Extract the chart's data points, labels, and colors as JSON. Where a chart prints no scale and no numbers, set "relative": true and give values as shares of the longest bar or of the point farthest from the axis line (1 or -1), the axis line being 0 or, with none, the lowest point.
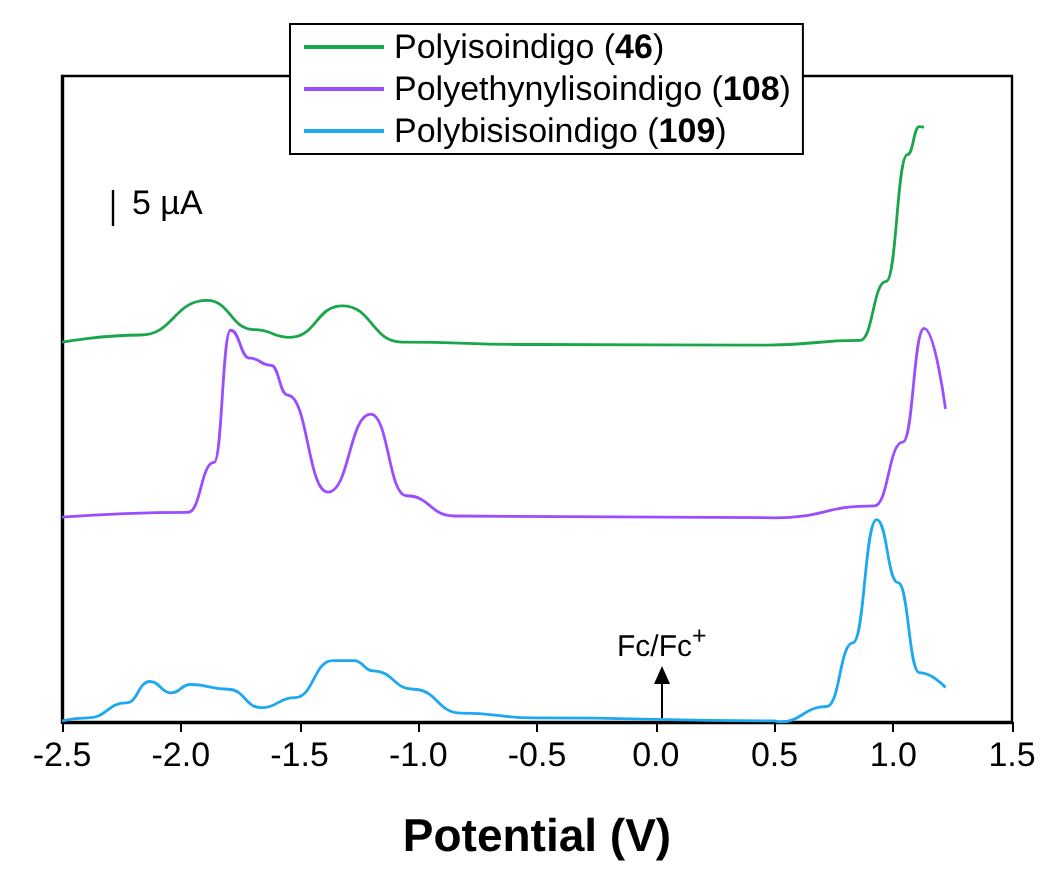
{
  "chart_data": {
    "type": "line",
    "relative": true,
    "xlabel": "Potential (V)",
    "xlim": [
      -2.5,
      1.5
    ],
    "xticks": [
      {
        "value": -2.5,
        "label": "-2.5"
      },
      {
        "value": -2,
        "label": "-2.0"
      },
      {
        "value": -1.5,
        "label": "-1.5"
      },
      {
        "value": -1,
        "label": "-1.0"
      },
      {
        "value": -0.5,
        "label": "-0.5"
      },
      {
        "value": 0,
        "label": "0.0"
      },
      {
        "value": 0.5,
        "label": "0.5"
      },
      {
        "value": 1,
        "label": "1.0"
      },
      {
        "value": 1.5,
        "label": "1.5"
      }
    ],
    "tick_labels": "x",
    "grid": false,
    "legend": "top",
    "marker": "none",
    "line_style": "solid",
    "annotations": [
      "5 µA",
      "Fc/Fc$^{+}$"
    ],
    "series": [
      {
        "name": "Polyisoindigo (46)",
        "color": "#1aa64a",
        "x": [
          -2.5,
          -2.17,
          -1.89,
          -1.69,
          -1.54,
          -1.32,
          -1.07,
          -0.51,
          0.47,
          0.86,
          0.97,
          1.06,
          1.11,
          1.13
        ],
        "values": [
          0.638,
          0.65,
          0.708,
          0.659,
          0.646,
          0.699,
          0.638,
          0.634,
          0.633,
          0.641,
          0.74,
          0.953,
          1.0,
          0.999
        ]
      },
      {
        "name": "Polyethynylisoindigo (108)",
        "color": "#9b4dff",
        "x": [
          -2.5,
          -1.97,
          -1.86,
          -1.79,
          -1.71,
          -1.62,
          -1.55,
          -1.38,
          -1.2,
          -1.05,
          -0.85,
          0.5,
          0.92,
          1.04,
          1.13,
          1.22
        ],
        "values": [
          0.344,
          0.352,
          0.436,
          0.658,
          0.611,
          0.599,
          0.549,
          0.386,
          0.517,
          0.38,
          0.346,
          0.343,
          0.363,
          0.47,
          0.661,
          0.526
        ]
      },
      {
        "name": "Polybisisoindigo (109)",
        "color": "#1ea8f0",
        "x": [
          -2.5,
          -2.39,
          -2.23,
          -2.13,
          -2.04,
          -1.96,
          -1.8,
          -1.66,
          -1.52,
          -1.36,
          -1.27,
          -1.19,
          -1.02,
          -0.82,
          -0.51,
          0.5,
          0.52,
          0.72,
          0.83,
          0.93,
          1.02,
          1.11,
          1.22
        ],
        "values": [
          0.002,
          0.007,
          0.032,
          0.068,
          0.049,
          0.063,
          0.055,
          0.024,
          0.041,
          0.103,
          0.103,
          0.086,
          0.055,
          0.015,
          0.007,
          0.002,
          0.0,
          0.026,
          0.133,
          0.34,
          0.234,
          0.083,
          0.058
        ]
      }
    ]
  }
}
